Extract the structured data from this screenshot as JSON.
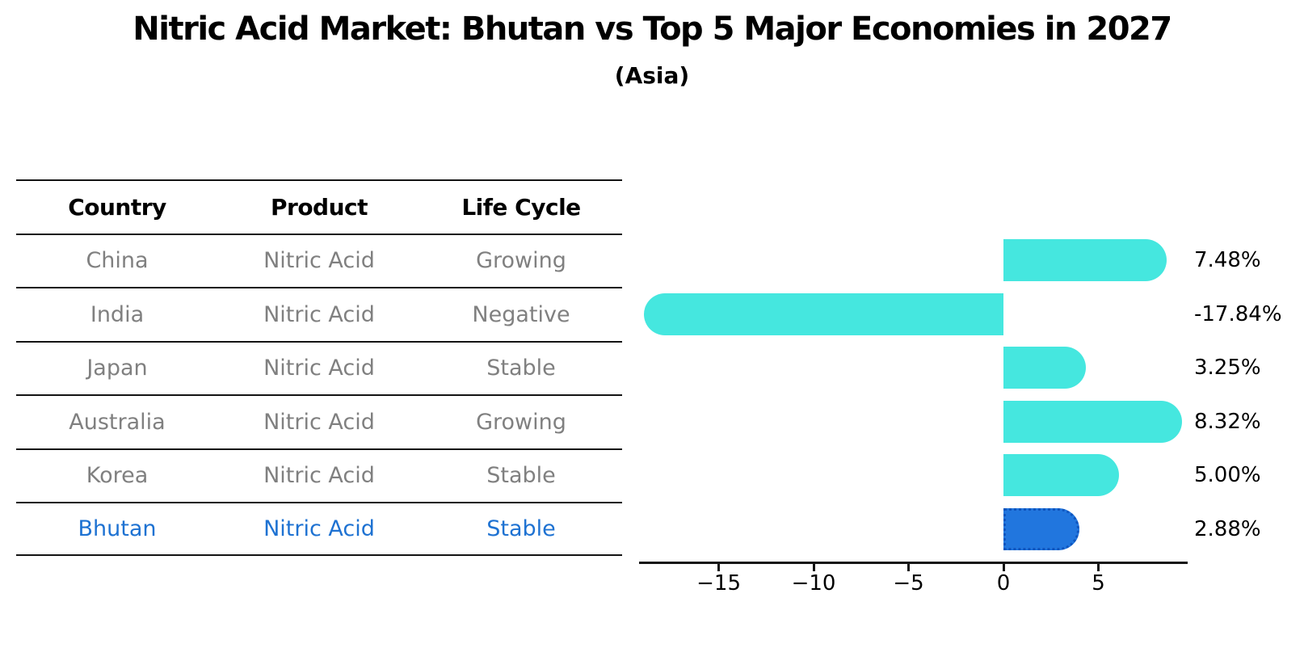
{
  "title": "Nitric Acid Market: Bhutan vs Top 5 Major Economies in 2027",
  "subtitle": "(Asia)",
  "table": {
    "headers": [
      "Country",
      "Product",
      "Life Cycle"
    ],
    "rows": [
      {
        "country": "China",
        "product": "Nitric Acid",
        "life_cycle": "Growing",
        "highlight": false
      },
      {
        "country": "India",
        "product": "Nitric Acid",
        "life_cycle": "Negative",
        "highlight": false
      },
      {
        "country": "Japan",
        "product": "Nitric Acid",
        "life_cycle": "Stable",
        "highlight": false
      },
      {
        "country": "Australia",
        "product": "Nitric Acid",
        "life_cycle": "Growing",
        "highlight": false
      },
      {
        "country": "Korea",
        "product": "Nitric Acid",
        "life_cycle": "Stable",
        "highlight": false
      },
      {
        "country": "Bhutan",
        "product": "Nitric Acid",
        "life_cycle": "Stable",
        "highlight": true
      }
    ]
  },
  "chart_data": {
    "type": "bar",
    "orientation": "horizontal",
    "title": "Nitric Acid Market: Bhutan vs Top 5 Major Economies in 2027",
    "subtitle": "(Asia)",
    "categories": [
      "China",
      "India",
      "Japan",
      "Australia",
      "Korea",
      "Bhutan"
    ],
    "values": [
      7.48,
      -17.84,
      3.25,
      8.32,
      5.0,
      2.88
    ],
    "value_labels": [
      "7.48%",
      "-17.84%",
      "3.25%",
      "8.32%",
      "5.00%",
      "2.88%"
    ],
    "x_tick_values": [
      -15,
      -10,
      -5,
      0,
      5
    ],
    "x_tick_labels": [
      "−15",
      "−10",
      "−5",
      "0",
      "5"
    ],
    "xlim": [
      -19.2,
      9.7
    ],
    "grid": false,
    "legend": false,
    "highlight_index": 5,
    "highlight_category": "Bhutan"
  },
  "colors": {
    "bar": "#45E7DF",
    "highlight_bar": "#2176DE",
    "highlight_border": "#0F55BE",
    "row_text": "#808080",
    "highlight_text": "#1E72D2",
    "axis": "#141414"
  }
}
